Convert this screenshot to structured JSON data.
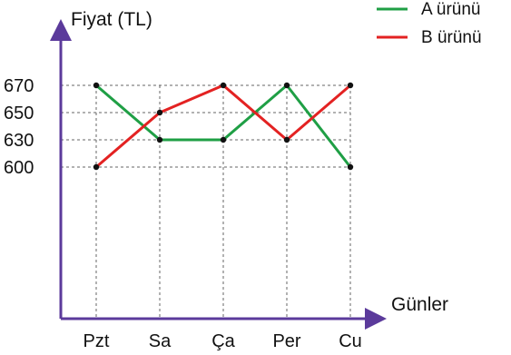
{
  "chart_data": {
    "type": "line",
    "categories": [
      "Pzt",
      "Sa",
      "Ça",
      "Per",
      "Cu"
    ],
    "series": [
      {
        "name": "A ürünü",
        "color": "#1f9f45",
        "values": [
          670,
          630,
          630,
          670,
          600
        ]
      },
      {
        "name": "B ürünü",
        "color": "#e32222",
        "values": [
          600,
          650,
          670,
          630,
          670
        ]
      }
    ],
    "ylabel": "Fiyat (TL)",
    "xlabel": "Günler",
    "yticks": [
      670,
      650,
      630,
      600
    ],
    "grid": true,
    "legend_position": "top-right"
  },
  "colors": {
    "axis": "#5b3a9b",
    "grid": "#666666",
    "point": "#111111"
  }
}
